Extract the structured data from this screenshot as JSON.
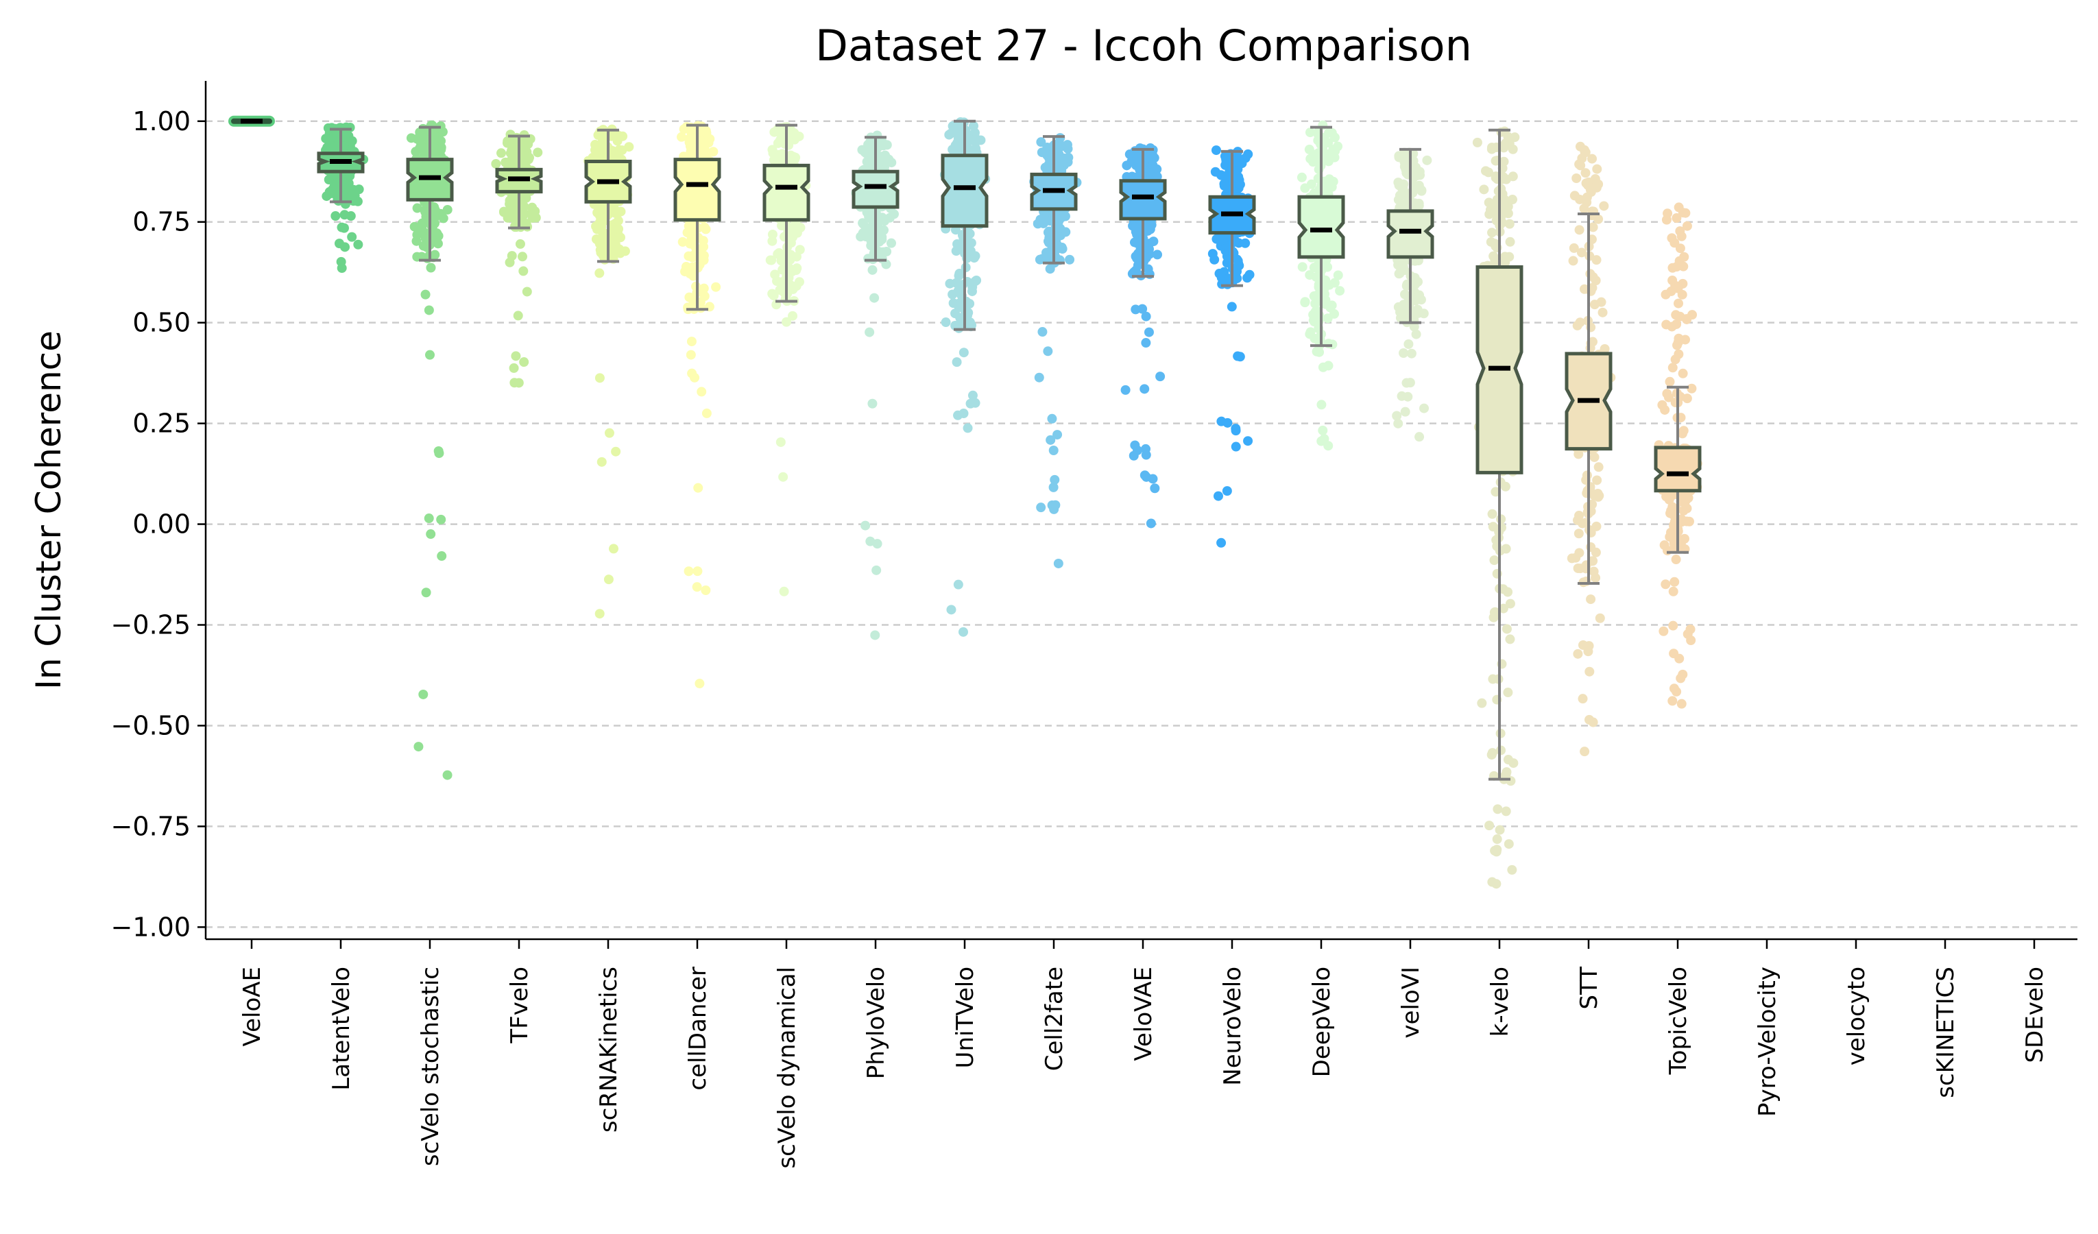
{
  "chart_data": {
    "type": "box",
    "title": "Dataset 27 - Iccoh Comparison",
    "xlabel": "",
    "ylabel": "In Cluster Coherence",
    "ylim": [
      -1.03,
      1.1
    ],
    "yticks": [
      1.0,
      0.75,
      0.5,
      0.25,
      0.0,
      -0.25,
      -0.5,
      -0.75,
      -1.0
    ],
    "ytick_labels": [
      "1.00",
      "0.75",
      "0.50",
      "0.25",
      "0.00",
      "−0.25",
      "−0.50",
      "−0.75",
      "−1.00"
    ],
    "grid": "horizontal dashed",
    "overlay": "jittered strip points per method",
    "categories": [
      "VeloAE",
      "LatentVelo",
      "scVelo stochastic",
      "TFvelo",
      "scRNAKinetics",
      "cellDancer",
      "scVelo dynamical",
      "PhyloVelo",
      "UniTVelo",
      "Cell2fate",
      "VeloVAE",
      "NeuroVelo",
      "DeepVelo",
      "veloVI",
      "k-velo",
      "STT",
      "TopicVelo",
      "Pyro-Velocity",
      "velocyto",
      "scKINETICS",
      "SDEvelo"
    ],
    "series": [
      {
        "name": "VeloAE",
        "color": "#5ccc7f",
        "whislo": 1.0,
        "q1": 1.0,
        "median": 1.0,
        "q3": 1.0,
        "whishi": 1.0,
        "min_point": 1.0,
        "max_point": 1.0
      },
      {
        "name": "LatentVelo",
        "color": "#6cd38a",
        "whislo": 0.8,
        "q1": 0.875,
        "median": 0.9,
        "q3": 0.92,
        "whishi": 0.98,
        "min_point": 0.63,
        "max_point": 0.985
      },
      {
        "name": "scVelo stochastic",
        "color": "#92e093",
        "whislo": 0.655,
        "q1": 0.805,
        "median": 0.86,
        "q3": 0.905,
        "whishi": 0.985,
        "min_point": -0.7,
        "max_point": 0.99
      },
      {
        "name": "TFvelo",
        "color": "#c4ec9c",
        "whislo": 0.735,
        "q1": 0.825,
        "median": 0.857,
        "q3": 0.88,
        "whishi": 0.963,
        "min_point": 0.33,
        "max_point": 0.97
      },
      {
        "name": "scRNAKinetics",
        "color": "#e4f7a7",
        "whislo": 0.652,
        "q1": 0.8,
        "median": 0.85,
        "q3": 0.9,
        "whishi": 0.978,
        "min_point": -0.28,
        "max_point": 0.98
      },
      {
        "name": "cellDancer",
        "color": "#fdfdb1",
        "whislo": 0.533,
        "q1": 0.755,
        "median": 0.843,
        "q3": 0.905,
        "whishi": 0.99,
        "min_point": -0.4,
        "max_point": 0.99
      },
      {
        "name": "scVelo dynamical",
        "color": "#e6fccb",
        "whislo": 0.553,
        "q1": 0.755,
        "median": 0.836,
        "q3": 0.89,
        "whishi": 0.99,
        "min_point": -0.22,
        "max_point": 0.99
      },
      {
        "name": "PhyloVelo",
        "color": "#c3ecd9",
        "whislo": 0.655,
        "q1": 0.787,
        "median": 0.838,
        "q3": 0.875,
        "whishi": 0.96,
        "min_point": -0.31,
        "max_point": 0.965
      },
      {
        "name": "UniTVelo",
        "color": "#a6dee2",
        "whislo": 0.483,
        "q1": 0.74,
        "median": 0.835,
        "q3": 0.915,
        "whishi": 1.0,
        "min_point": -0.35,
        "max_point": 1.0
      },
      {
        "name": "Cell2fate",
        "color": "#7ecbec",
        "whislo": 0.648,
        "q1": 0.782,
        "median": 0.828,
        "q3": 0.868,
        "whishi": 0.962,
        "min_point": -0.12,
        "max_point": 0.965
      },
      {
        "name": "VeloVAE",
        "color": "#5bb8f2",
        "whislo": 0.615,
        "q1": 0.758,
        "median": 0.812,
        "q3": 0.852,
        "whishi": 0.93,
        "min_point": 0.0,
        "max_point": 0.935
      },
      {
        "name": "NeuroVelo",
        "color": "#3aabf9",
        "whislo": 0.592,
        "q1": 0.723,
        "median": 0.77,
        "q3": 0.812,
        "whishi": 0.925,
        "min_point": -0.05,
        "max_point": 0.93
      },
      {
        "name": "DeepVelo",
        "color": "#d8fad6",
        "whislo": 0.443,
        "q1": 0.663,
        "median": 0.73,
        "q3": 0.812,
        "whishi": 0.985,
        "min_point": 0.18,
        "max_point": 0.99
      },
      {
        "name": "veloVI",
        "color": "#e1efd1",
        "whislo": 0.5,
        "q1": 0.663,
        "median": 0.727,
        "q3": 0.777,
        "whishi": 0.93,
        "min_point": 0.19,
        "max_point": 0.93
      },
      {
        "name": "k-velo",
        "color": "#e6e8c5",
        "whislo": -0.633,
        "q1": 0.128,
        "median": 0.387,
        "q3": 0.638,
        "whishi": 0.978,
        "min_point": -0.92,
        "max_point": 0.98
      },
      {
        "name": "STT",
        "color": "#f0e1bc",
        "whislo": -0.147,
        "q1": 0.187,
        "median": 0.307,
        "q3": 0.423,
        "whishi": 0.77,
        "min_point": -0.57,
        "max_point": 0.96
      },
      {
        "name": "TopicVelo",
        "color": "#f6d9b1",
        "whislo": -0.07,
        "q1": 0.083,
        "median": 0.125,
        "q3": 0.19,
        "whishi": 0.34,
        "min_point": -0.46,
        "max_point": 0.79
      },
      {
        "name": "Pyro-Velocity",
        "color": null
      },
      {
        "name": "velocyto",
        "color": null
      },
      {
        "name": "scKINETICS",
        "color": null
      },
      {
        "name": "SDEvelo",
        "color": null
      }
    ]
  }
}
